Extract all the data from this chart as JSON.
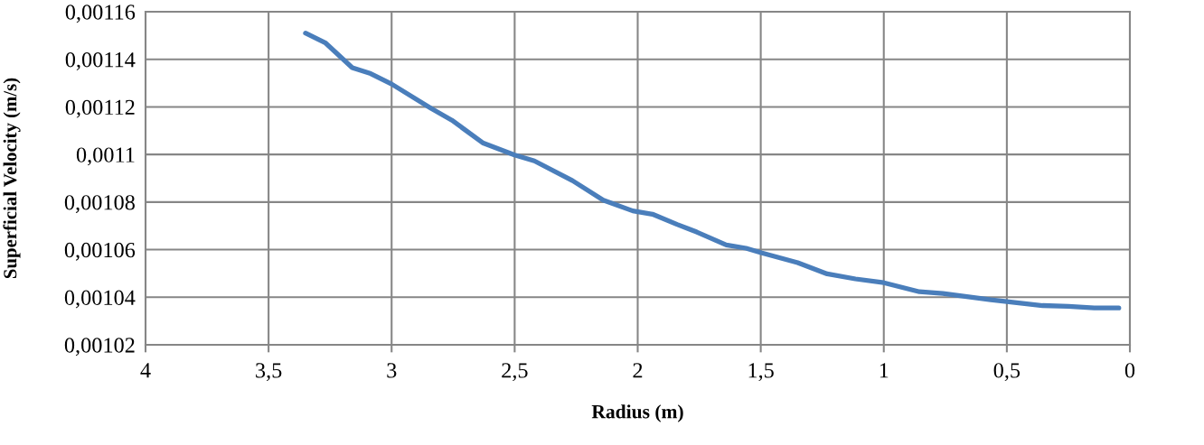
{
  "chart_data": {
    "type": "line",
    "xlabel": "Radius (m)",
    "ylabel": "Superficial Velocity (m/s)",
    "x": [
      3.35,
      3.27,
      3.16,
      3.085,
      3.0,
      2.84,
      2.755,
      2.63,
      2.5,
      2.42,
      2.265,
      2.14,
      2.02,
      1.94,
      1.84,
      1.76,
      1.64,
      1.56,
      1.495,
      1.35,
      1.23,
      1.115,
      1.0,
      0.855,
      0.76,
      0.565,
      0.5,
      0.355,
      0.25,
      0.145,
      0.045
    ],
    "series": [
      {
        "color": "#4a7ebb",
        "values": [
          0.001151,
          0.001147,
          0.0011365,
          0.001134,
          0.0011296,
          0.0011194,
          0.0011144,
          0.0011049,
          0.0010998,
          0.0010973,
          0.001089,
          0.0010808,
          0.0010763,
          0.0010749,
          0.0010706,
          0.0010674,
          0.001062,
          0.0010606,
          0.0010586,
          0.0010545,
          0.0010498,
          0.0010477,
          0.0010461,
          0.0010423,
          0.0010416,
          0.0010389,
          0.0010382,
          0.0010365,
          0.0010362,
          0.0010355,
          0.0010355
        ]
      }
    ],
    "xlim": [
      4,
      0
    ],
    "ylim": [
      0.00102,
      0.00116
    ],
    "xticks": [
      4,
      {
        "value": 3.5,
        "label": "3,5"
      },
      3,
      {
        "value": 2.5,
        "label": "2,5"
      },
      2,
      {
        "value": 1.5,
        "label": "1,5"
      },
      1,
      {
        "value": 0.5,
        "label": "0,5"
      },
      0
    ],
    "yticks": [
      {
        "value": 0.00102,
        "label": "0,00102"
      },
      {
        "value": 0.00104,
        "label": "0,00104"
      },
      {
        "value": 0.00106,
        "label": "0,00106"
      },
      {
        "value": 0.00108,
        "label": "0,00108"
      },
      {
        "value": 0.0011,
        "label": "0,0011"
      },
      {
        "value": 0.00112,
        "label": "0,00112"
      },
      {
        "value": 0.00114,
        "label": "0,00114"
      },
      {
        "value": 0.00116,
        "label": "0,00116"
      }
    ],
    "grid": true,
    "line_style": "solid"
  }
}
